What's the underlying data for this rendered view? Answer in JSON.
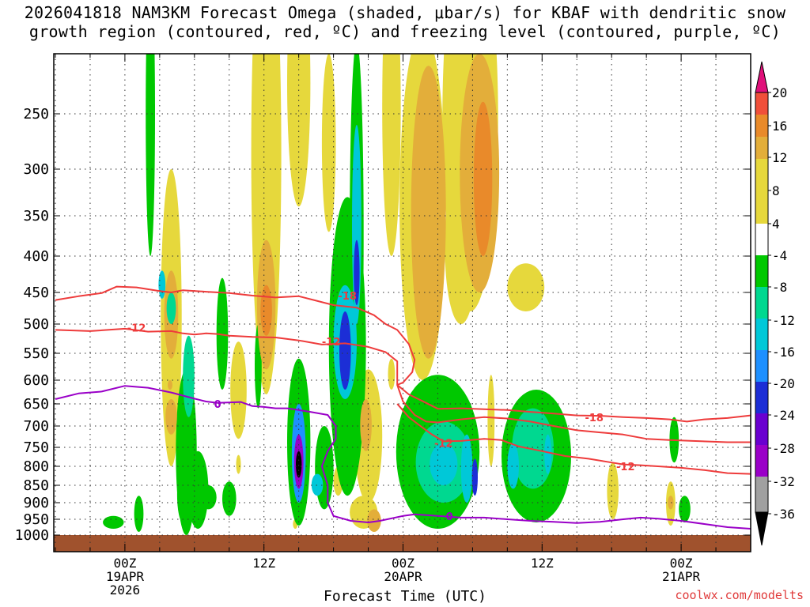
{
  "chart_data": {
    "type": "heatmap",
    "title_line1": "2026041818 NAM3KM Forecast Omega (shaded, μbar/s) for KBAF with dendritic snow",
    "title_line2": "growth region (contoured, red, ºC) and freezing level (contoured, purple, ºC)",
    "xlabel": "Forecast Time (UTC)",
    "credit": "coolwx.com/modelts",
    "x_unit": "forecast hours from 2026-04-18 18Z",
    "xlim": [
      0,
      60
    ],
    "x_ticks": [
      {
        "hour": 6,
        "lines": [
          "00Z",
          "19APR",
          "2026"
        ]
      },
      {
        "hour": 18,
        "lines": [
          "12Z"
        ]
      },
      {
        "hour": 30,
        "lines": [
          "00Z",
          "20APR"
        ]
      },
      {
        "hour": 42,
        "lines": [
          "12Z"
        ]
      },
      {
        "hour": 54,
        "lines": [
          "00Z",
          "21APR"
        ]
      }
    ],
    "y_unit": "hPa",
    "ylim": [
      1020,
      200
    ],
    "y_ticks": [
      250,
      300,
      350,
      400,
      450,
      500,
      550,
      600,
      650,
      700,
      750,
      800,
      850,
      900,
      950,
      1000
    ],
    "colorbar": {
      "labels": [
        "20",
        "16",
        "12",
        "8",
        "4",
        "-4",
        "-8",
        "-12",
        "-16",
        "-20",
        "-24",
        "-28",
        "-32",
        "-36"
      ],
      "bins": [
        {
          "lo": -40,
          "hi": -36,
          "color": "#000000"
        },
        {
          "lo": -36,
          "hi": -32,
          "color": "#a0a0a0"
        },
        {
          "lo": -32,
          "hi": -28,
          "color": "#9a00c8"
        },
        {
          "lo": -28,
          "hi": -24,
          "color": "#6a00d0"
        },
        {
          "lo": -24,
          "hi": -20,
          "color": "#1c2ed6"
        },
        {
          "lo": -20,
          "hi": -16,
          "color": "#1e90ff"
        },
        {
          "lo": -16,
          "hi": -12,
          "color": "#00c8d8"
        },
        {
          "lo": -12,
          "hi": -8,
          "color": "#00d890"
        },
        {
          "lo": -8,
          "hi": -4,
          "color": "#00c800"
        },
        {
          "lo": -4,
          "hi": 4,
          "color": "#ffffff"
        },
        {
          "lo": 4,
          "hi": 8,
          "color": "#e6d83c"
        },
        {
          "lo": 8,
          "hi": 12,
          "color": "#e3ae3a"
        },
        {
          "lo": 12,
          "hi": 16,
          "color": "#e98a2a"
        },
        {
          "lo": 16,
          "hi": 20,
          "color": "#f04f3a"
        },
        {
          "lo": 20,
          "hi": 24,
          "color": "#e0107a"
        }
      ]
    },
    "omega_features": [
      {
        "t": 11.3,
        "p0": 1000,
        "p1": 580,
        "w": 0.9,
        "v": -6
      },
      {
        "t": 11.5,
        "p0": 680,
        "p1": 520,
        "w": 0.5,
        "v": -10
      },
      {
        "t": 10.0,
        "p0": 800,
        "p1": 300,
        "w": 0.9,
        "v": 5
      },
      {
        "t": 10.0,
        "p0": 720,
        "p1": 640,
        "w": 0.5,
        "v": 8
      },
      {
        "t": 10.0,
        "p0": 560,
        "p1": 420,
        "w": 0.6,
        "v": 8
      },
      {
        "t": 10.0,
        "p0": 500,
        "p1": 450,
        "w": 0.4,
        "v": -10
      },
      {
        "t": 8.2,
        "p0": 400,
        "p1": 130,
        "w": 0.4,
        "v": -6
      },
      {
        "t": 14.4,
        "p0": 620,
        "p1": 430,
        "w": 0.5,
        "v": -6
      },
      {
        "t": 15.8,
        "p0": 730,
        "p1": 530,
        "w": 0.7,
        "v": 4
      },
      {
        "t": 18.2,
        "p0": 630,
        "p1": 80,
        "w": 1.3,
        "v": 5
      },
      {
        "t": 18.2,
        "p0": 580,
        "p1": 380,
        "w": 0.8,
        "v": 9
      },
      {
        "t": 18.2,
        "p0": 520,
        "p1": 440,
        "w": 0.5,
        "v": 13
      },
      {
        "t": 21.0,
        "p0": 340,
        "p1": 120,
        "w": 1.0,
        "v": 5
      },
      {
        "t": 23.6,
        "p0": 370,
        "p1": 200,
        "w": 0.6,
        "v": 5
      },
      {
        "t": 21.0,
        "p0": 970,
        "p1": 560,
        "w": 1.0,
        "v": -8
      },
      {
        "t": 21.0,
        "p0": 900,
        "p1": 650,
        "w": 0.6,
        "v": -20
      },
      {
        "t": 21.0,
        "p0": 860,
        "p1": 720,
        "w": 0.4,
        "v": -30
      },
      {
        "t": 21.0,
        "p0": 830,
        "p1": 760,
        "w": 0.25,
        "v": -40
      },
      {
        "t": 23.2,
        "p0": 920,
        "p1": 700,
        "w": 0.8,
        "v": -6
      },
      {
        "t": 22.6,
        "p0": 880,
        "p1": 820,
        "w": 0.5,
        "v": -16
      },
      {
        "t": 24.4,
        "p0": 880,
        "p1": 800,
        "w": 0.4,
        "v": 5
      },
      {
        "t": 25.2,
        "p0": 880,
        "p1": 330,
        "w": 1.6,
        "v": -6
      },
      {
        "t": 25.0,
        "p0": 640,
        "p1": 440,
        "w": 1.0,
        "v": -14
      },
      {
        "t": 25.0,
        "p0": 620,
        "p1": 480,
        "w": 0.5,
        "v": -24
      },
      {
        "t": 26.0,
        "p0": 700,
        "p1": 190,
        "w": 0.6,
        "v": -8
      },
      {
        "t": 26.0,
        "p0": 500,
        "p1": 260,
        "w": 0.4,
        "v": -16
      },
      {
        "t": 26.0,
        "p0": 470,
        "p1": 380,
        "w": 0.25,
        "v": -24
      },
      {
        "t": 27.0,
        "p0": 900,
        "p1": 580,
        "w": 1.2,
        "v": 5
      },
      {
        "t": 26.8,
        "p0": 760,
        "p1": 640,
        "w": 0.5,
        "v": 9
      },
      {
        "t": 26.6,
        "p0": 980,
        "p1": 880,
        "w": 1.2,
        "v": 5
      },
      {
        "t": 27.5,
        "p0": 990,
        "p1": 920,
        "w": 0.6,
        "v": 10
      },
      {
        "t": 29.0,
        "p0": 400,
        "p1": 120,
        "w": 0.8,
        "v": 5
      },
      {
        "t": 31.7,
        "p0": 600,
        "p1": 180,
        "w": 2.0,
        "v": 5
      },
      {
        "t": 32.2,
        "p0": 560,
        "p1": 210,
        "w": 1.5,
        "v": 8
      },
      {
        "t": 32.3,
        "p0": 460,
        "p1": 250,
        "w": 0.8,
        "v": 11
      },
      {
        "t": 35.8,
        "p0": 480,
        "p1": 90,
        "w": 2.4,
        "v": 5
      },
      {
        "t": 36.6,
        "p0": 450,
        "p1": 200,
        "w": 1.7,
        "v": 8
      },
      {
        "t": 36.9,
        "p0": 400,
        "p1": 240,
        "w": 0.8,
        "v": 12
      },
      {
        "t": 35.0,
        "p0": 500,
        "p1": 300,
        "w": 1.4,
        "v": 5
      },
      {
        "t": 40.6,
        "p0": 480,
        "p1": 410,
        "w": 1.6,
        "v": 5
      },
      {
        "t": 33.0,
        "p0": 980,
        "p1": 590,
        "w": 3.6,
        "v": -6
      },
      {
        "t": 33.5,
        "p0": 900,
        "p1": 690,
        "w": 2.4,
        "v": -10
      },
      {
        "t": 33.5,
        "p0": 850,
        "p1": 740,
        "w": 1.2,
        "v": -14
      },
      {
        "t": 35.5,
        "p0": 900,
        "p1": 720,
        "w": 0.5,
        "v": -16
      },
      {
        "t": 36.2,
        "p0": 880,
        "p1": 780,
        "w": 0.25,
        "v": -22
      },
      {
        "t": 37.6,
        "p0": 800,
        "p1": 590,
        "w": 0.3,
        "v": 5
      },
      {
        "t": 41.5,
        "p0": 960,
        "p1": 620,
        "w": 3.0,
        "v": -6
      },
      {
        "t": 41.2,
        "p0": 860,
        "p1": 660,
        "w": 1.8,
        "v": -10
      },
      {
        "t": 39.5,
        "p0": 860,
        "p1": 740,
        "w": 0.5,
        "v": -14
      },
      {
        "t": 42.5,
        "p0": 820,
        "p1": 720,
        "w": 0.3,
        "v": -16
      },
      {
        "t": 48.1,
        "p0": 950,
        "p1": 790,
        "w": 0.5,
        "v": 5
      },
      {
        "t": 53.4,
        "p0": 790,
        "p1": 680,
        "w": 0.4,
        "v": -6
      },
      {
        "t": 53.1,
        "p0": 970,
        "p1": 840,
        "w": 0.4,
        "v": 5
      },
      {
        "t": 53.1,
        "p0": 920,
        "p1": 880,
        "w": 0.25,
        "v": 9
      },
      {
        "t": 54.3,
        "p0": 960,
        "p1": 880,
        "w": 0.5,
        "v": -6
      },
      {
        "t": 5.0,
        "p0": 980,
        "p1": 940,
        "w": 0.9,
        "v": -6
      },
      {
        "t": 7.2,
        "p0": 990,
        "p1": 880,
        "w": 0.4,
        "v": -6
      },
      {
        "t": 11.0,
        "p0": 960,
        "p1": 800,
        "w": 0.5,
        "v": -6
      },
      {
        "t": 12.3,
        "p0": 980,
        "p1": 760,
        "w": 0.9,
        "v": -6
      },
      {
        "t": 13.2,
        "p0": 920,
        "p1": 850,
        "w": 0.7,
        "v": -6
      },
      {
        "t": 15.0,
        "p0": 940,
        "p1": 840,
        "w": 0.6,
        "v": -6
      },
      {
        "t": 15.8,
        "p0": 820,
        "p1": 770,
        "w": 0.2,
        "v": 5
      },
      {
        "t": 9.2,
        "p0": 460,
        "p1": 420,
        "w": 0.3,
        "v": -16
      },
      {
        "t": 9.9,
        "p0": 640,
        "p1": 580,
        "w": 0.4,
        "v": 5
      },
      {
        "t": 9.9,
        "p0": 620,
        "p1": 600,
        "w": 0.2,
        "v": 9
      },
      {
        "t": 29.0,
        "p0": 620,
        "p1": 560,
        "w": 0.3,
        "v": 5
      },
      {
        "t": 20.7,
        "p0": 980,
        "p1": 950,
        "w": 0.2,
        "v": 5
      },
      {
        "t": 17.5,
        "p0": 660,
        "p1": 500,
        "w": 0.3,
        "v": -6
      }
    ],
    "contours": {
      "minus18": {
        "color": "#ee3b3b",
        "points": [
          [
            0,
            462
          ],
          [
            2,
            456
          ],
          [
            4,
            451
          ],
          [
            5.3,
            442
          ],
          [
            7,
            443
          ],
          [
            9,
            448
          ],
          [
            10,
            450
          ],
          [
            11,
            447
          ],
          [
            13,
            449
          ],
          [
            15,
            451
          ],
          [
            17,
            455
          ],
          [
            19,
            458
          ],
          [
            21,
            456
          ],
          [
            22.5,
            463
          ],
          [
            24,
            470
          ],
          [
            26,
            474
          ],
          [
            27.5,
            486
          ],
          [
            28.5,
            500
          ],
          [
            29.5,
            510
          ],
          [
            30.5,
            534
          ],
          [
            31,
            562
          ],
          [
            30.8,
            585
          ],
          [
            30,
            605
          ],
          [
            29.5,
            610
          ]
        ]
      },
      "minus12": {
        "color": "#ee3b3b",
        "points": [
          [
            0,
            510
          ],
          [
            3,
            512
          ],
          [
            6,
            508
          ],
          [
            8,
            513
          ],
          [
            10,
            512
          ],
          [
            11,
            516
          ],
          [
            12,
            518
          ],
          [
            13,
            516
          ],
          [
            14,
            517
          ],
          [
            15,
            520
          ],
          [
            17,
            522
          ],
          [
            19,
            523
          ],
          [
            21,
            528
          ],
          [
            23,
            535
          ],
          [
            25,
            533
          ],
          [
            27,
            539
          ],
          [
            28.5,
            548
          ],
          [
            29.5,
            565
          ],
          [
            29.5,
            585
          ],
          [
            29.5,
            610
          ],
          [
            30,
            645
          ],
          [
            31,
            675
          ],
          [
            32,
            690
          ],
          [
            33,
            692
          ],
          [
            35,
            685
          ],
          [
            37,
            680
          ],
          [
            39,
            683
          ],
          [
            41,
            690
          ],
          [
            43,
            700
          ],
          [
            45,
            710
          ],
          [
            47,
            715
          ],
          [
            49,
            720
          ],
          [
            51,
            730
          ],
          [
            53,
            733
          ],
          [
            55,
            735
          ],
          [
            58,
            738
          ],
          [
            60,
            738
          ]
        ]
      },
      "minus18_lower": {
        "color": "#ee3b3b",
        "points": [
          [
            29.5,
            610
          ],
          [
            30.5,
            630
          ],
          [
            32,
            648
          ],
          [
            33,
            661
          ],
          [
            35,
            660
          ],
          [
            37,
            662
          ],
          [
            39,
            664
          ],
          [
            41,
            668
          ],
          [
            43,
            672
          ],
          [
            45,
            676
          ],
          [
            47,
            677
          ],
          [
            49,
            680
          ],
          [
            51,
            682
          ],
          [
            53,
            685
          ],
          [
            54.5,
            690
          ],
          [
            56,
            685
          ],
          [
            58,
            682
          ],
          [
            60,
            676
          ]
        ]
      },
      "minus12_lower": {
        "color": "#ee3b3b",
        "points": [
          [
            29.5,
            650
          ],
          [
            30.5,
            680
          ],
          [
            31.5,
            700
          ],
          [
            32.5,
            720
          ],
          [
            33.5,
            736
          ],
          [
            35,
            735
          ],
          [
            37,
            730
          ],
          [
            38.5,
            733
          ],
          [
            40,
            748
          ],
          [
            42,
            760
          ],
          [
            44,
            773
          ],
          [
            46,
            780
          ],
          [
            48,
            790
          ],
          [
            49,
            795
          ],
          [
            50.5,
            797
          ],
          [
            52,
            800
          ],
          [
            54,
            804
          ],
          [
            56,
            810
          ],
          [
            58,
            818
          ],
          [
            60,
            820
          ]
        ]
      },
      "freezing_level": {
        "color": "#9a00c8",
        "points": [
          [
            0,
            640
          ],
          [
            2,
            628
          ],
          [
            4,
            624
          ],
          [
            6,
            612
          ],
          [
            8,
            616
          ],
          [
            10,
            626
          ],
          [
            12,
            639
          ],
          [
            13,
            645
          ],
          [
            14,
            648
          ],
          [
            16,
            646
          ],
          [
            17,
            655
          ],
          [
            18,
            657
          ],
          [
            19,
            660
          ],
          [
            20,
            660
          ],
          [
            21,
            664
          ],
          [
            22,
            668
          ],
          [
            23.5,
            675
          ],
          [
            24.2,
            700
          ],
          [
            24.2,
            730
          ],
          [
            23.5,
            760
          ],
          [
            23,
            800
          ],
          [
            23.5,
            850
          ],
          [
            23.5,
            900
          ],
          [
            24,
            940
          ],
          [
            25.5,
            955
          ],
          [
            27,
            960
          ],
          [
            28,
            955
          ],
          [
            30,
            940
          ],
          [
            31,
            935
          ],
          [
            33,
            940
          ],
          [
            35,
            945
          ],
          [
            37,
            945
          ],
          [
            39,
            950
          ],
          [
            41,
            955
          ],
          [
            43,
            958
          ],
          [
            45,
            962
          ],
          [
            47,
            958
          ],
          [
            49,
            950
          ],
          [
            50.5,
            945
          ],
          [
            52,
            948
          ],
          [
            54,
            955
          ],
          [
            56,
            965
          ],
          [
            58,
            975
          ],
          [
            60,
            980
          ]
        ]
      }
    },
    "contour_labels": [
      {
        "text": "-18",
        "t": 25.2,
        "p": 455,
        "color": "#ee3b3b"
      },
      {
        "text": "-12",
        "t": 7.0,
        "p": 506,
        "color": "#ee3b3b"
      },
      {
        "text": "-12",
        "t": 23.8,
        "p": 530,
        "color": "#ee3b3b"
      },
      {
        "text": "-12",
        "t": 33.5,
        "p": 740,
        "color": "#ee3b3b"
      },
      {
        "text": "-18",
        "t": 46.5,
        "p": 680,
        "color": "#ee3b3b"
      },
      {
        "text": "-12",
        "t": 49.2,
        "p": 800,
        "color": "#ee3b3b"
      },
      {
        "text": "0",
        "t": 14.0,
        "p": 650,
        "color": "#9a00c8"
      },
      {
        "text": "0",
        "t": 34.0,
        "p": 940,
        "color": "#9a00c8"
      }
    ],
    "ground_level_hpa": 1000
  }
}
